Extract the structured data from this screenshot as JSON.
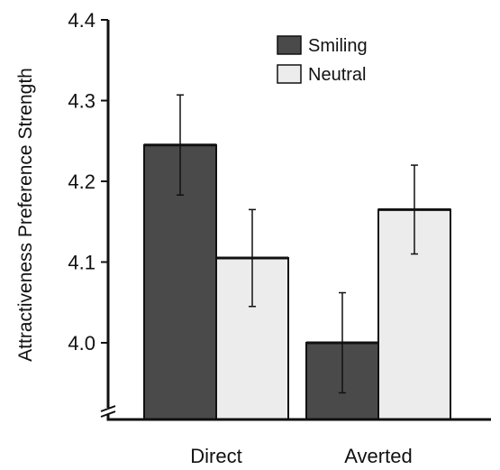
{
  "chart_data": {
    "type": "bar",
    "title": "",
    "xlabel": "",
    "ylabel": "Attractiveness Preference Strength",
    "categories": [
      "Direct",
      "Averted"
    ],
    "series": [
      {
        "name": "Smiling",
        "color": "#4a4a4a",
        "values": [
          4.245,
          4.0
        ],
        "error": [
          0.062,
          0.062
        ]
      },
      {
        "name": "Neutral",
        "color": "#ececec",
        "values": [
          4.105,
          4.165
        ],
        "error": [
          0.06,
          0.055
        ]
      }
    ],
    "yticks": [
      "4.0",
      "4.1",
      "4.2",
      "4.3",
      "4.4"
    ],
    "ylim": [
      3.905,
      4.4
    ],
    "axis_break": true,
    "grid": false,
    "legend_position": "top-right"
  }
}
